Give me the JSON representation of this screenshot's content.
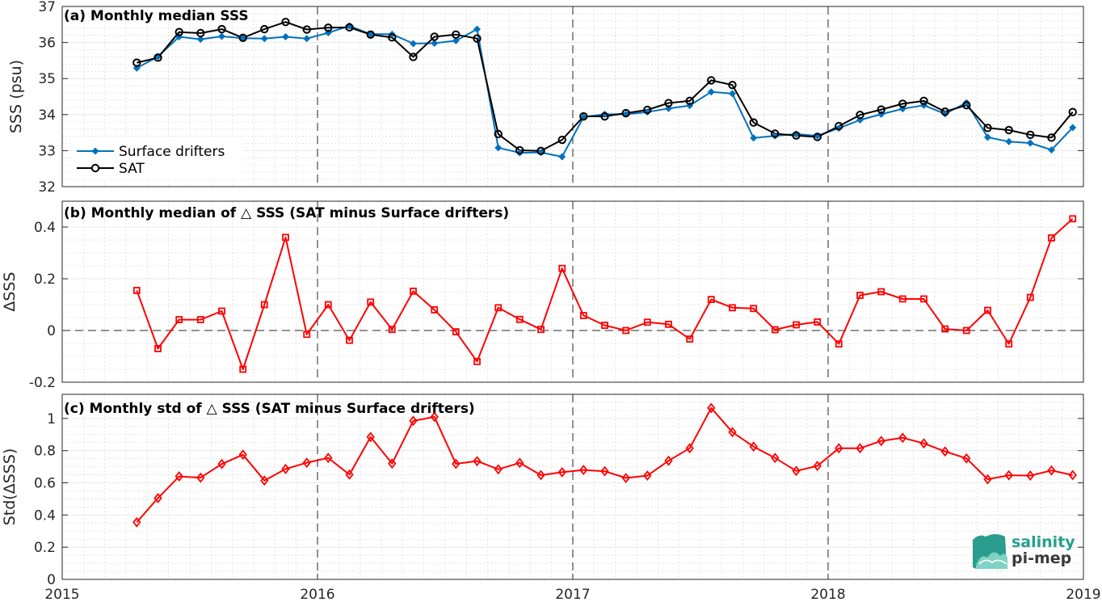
{
  "chart_data": [
    {
      "type": "line",
      "title": "(a) Monthly median SSS",
      "xlabel": "",
      "ylabel": "SSS (psu)",
      "xlim": [
        2015,
        2019
      ],
      "ylim": [
        32,
        37
      ],
      "xticks": [
        "2015",
        "2016",
        "2017",
        "2018",
        "2019"
      ],
      "yticks": [
        "32",
        "33",
        "34",
        "35",
        "36",
        "37"
      ],
      "grid": true,
      "legend": "lower-left",
      "x": [
        2015.292,
        2015.375,
        2015.458,
        2015.542,
        2015.625,
        2015.708,
        2015.792,
        2015.875,
        2015.958,
        2016.042,
        2016.125,
        2016.208,
        2016.292,
        2016.375,
        2016.458,
        2016.542,
        2016.625,
        2016.708,
        2016.792,
        2016.875,
        2016.958,
        2017.042,
        2017.125,
        2017.208,
        2017.292,
        2017.375,
        2017.458,
        2017.542,
        2017.625,
        2017.708,
        2017.792,
        2017.875,
        2017.958,
        2018.042,
        2018.125,
        2018.208,
        2018.292,
        2018.375,
        2018.458,
        2018.542,
        2018.625,
        2018.708,
        2018.792,
        2018.875,
        2018.958
      ],
      "series": [
        {
          "name": "Surface drifters",
          "color": "#0072bd",
          "marker": "diamond-filled",
          "values": [
            35.29,
            35.61,
            36.16,
            36.09,
            36.17,
            36.12,
            36.11,
            36.16,
            36.11,
            36.27,
            36.46,
            36.23,
            36.23,
            35.97,
            35.98,
            36.05,
            36.37,
            33.08,
            32.94,
            32.95,
            32.83,
            33.93,
            34.01,
            34.01,
            34.07,
            34.17,
            34.25,
            34.63,
            34.58,
            33.35,
            33.41,
            33.46,
            33.41,
            33.62,
            33.85,
            34.01,
            34.16,
            34.26,
            34.02,
            34.33,
            33.37,
            33.25,
            33.21,
            33.02,
            33.64
          ]
        },
        {
          "name": "SAT",
          "color": "#000000",
          "marker": "circle-open",
          "values": [
            35.44,
            35.58,
            36.29,
            36.26,
            36.37,
            36.13,
            36.37,
            36.57,
            36.36,
            36.41,
            36.42,
            36.22,
            36.14,
            35.6,
            36.16,
            36.22,
            36.11,
            33.46,
            33.01,
            32.99,
            33.3,
            33.95,
            33.95,
            34.04,
            34.13,
            34.32,
            34.38,
            34.95,
            34.82,
            33.78,
            33.47,
            33.42,
            33.38,
            33.68,
            33.99,
            34.14,
            34.3,
            34.38,
            34.08,
            34.26,
            33.63,
            33.57,
            33.44,
            33.36,
            34.07
          ]
        }
      ]
    },
    {
      "type": "line",
      "title": "(b) Monthly median of △ SSS (SAT minus Surface drifters)",
      "xlabel": "",
      "ylabel": "ΔSSS",
      "xlim": [
        2015,
        2019
      ],
      "ylim": [
        -0.2,
        0.5
      ],
      "yticks": [
        "-0.2",
        "0",
        "0.2",
        "0.4"
      ],
      "grid": true,
      "x": [
        2015.292,
        2015.375,
        2015.458,
        2015.542,
        2015.625,
        2015.708,
        2015.792,
        2015.875,
        2015.958,
        2016.042,
        2016.125,
        2016.208,
        2016.292,
        2016.375,
        2016.458,
        2016.542,
        2016.625,
        2016.708,
        2016.792,
        2016.875,
        2016.958,
        2017.042,
        2017.125,
        2017.208,
        2017.292,
        2017.375,
        2017.458,
        2017.542,
        2017.625,
        2017.708,
        2017.792,
        2017.875,
        2017.958,
        2018.042,
        2018.125,
        2018.208,
        2018.292,
        2018.375,
        2018.458,
        2018.542,
        2018.625,
        2018.708,
        2018.792,
        2018.875,
        2018.958
      ],
      "series": [
        {
          "color": "#ff0000",
          "marker": "square-open",
          "values": [
            0.155,
            -0.07,
            0.042,
            0.042,
            0.075,
            -0.15,
            0.1,
            0.36,
            -0.015,
            0.1,
            -0.038,
            0.11,
            0.004,
            0.152,
            0.08,
            -0.005,
            -0.12,
            0.088,
            0.043,
            0.004,
            0.24,
            0.058,
            0.02,
            0.0,
            0.032,
            0.024,
            -0.033,
            0.12,
            0.088,
            0.085,
            0.003,
            0.022,
            0.033,
            -0.052,
            0.136,
            0.15,
            0.122,
            0.122,
            0.006,
            0.0,
            0.078,
            -0.052,
            0.128,
            0.358,
            0.432
          ]
        }
      ]
    },
    {
      "type": "line",
      "title": "(c) Monthly std of △ SSS (SAT minus Surface drifters)",
      "xlabel": "",
      "ylabel": "Std(ΔSSS)",
      "xlim": [
        2015,
        2019
      ],
      "ylim": [
        0,
        1.15
      ],
      "yticks": [
        "0",
        "0.2",
        "0.4",
        "0.6",
        "0.8",
        "1"
      ],
      "grid": true,
      "x": [
        2015.292,
        2015.375,
        2015.458,
        2015.542,
        2015.625,
        2015.708,
        2015.792,
        2015.875,
        2015.958,
        2016.042,
        2016.125,
        2016.208,
        2016.292,
        2016.375,
        2016.458,
        2016.542,
        2016.625,
        2016.708,
        2016.792,
        2016.875,
        2016.958,
        2017.042,
        2017.125,
        2017.208,
        2017.292,
        2017.375,
        2017.458,
        2017.542,
        2017.625,
        2017.708,
        2017.792,
        2017.875,
        2017.958,
        2018.042,
        2018.125,
        2018.208,
        2018.292,
        2018.375,
        2018.458,
        2018.542,
        2018.625,
        2018.708,
        2018.792,
        2018.875,
        2018.958
      ],
      "series": [
        {
          "color": "#ff0000",
          "marker": "diamond-open",
          "values": [
            0.355,
            0.505,
            0.64,
            0.632,
            0.717,
            0.775,
            0.614,
            0.686,
            0.725,
            0.755,
            0.651,
            0.885,
            0.72,
            0.985,
            1.01,
            0.718,
            0.735,
            0.684,
            0.724,
            0.648,
            0.666,
            0.68,
            0.672,
            0.63,
            0.645,
            0.737,
            0.815,
            1.065,
            0.915,
            0.825,
            0.755,
            0.674,
            0.705,
            0.815,
            0.815,
            0.86,
            0.88,
            0.845,
            0.795,
            0.752,
            0.622,
            0.647,
            0.645,
            0.677,
            0.648
          ]
        }
      ]
    }
  ],
  "logo": {
    "line1": "salinity",
    "line2": "pi-mep",
    "color1": "#25a08c",
    "color2": "#3a3a3a"
  }
}
